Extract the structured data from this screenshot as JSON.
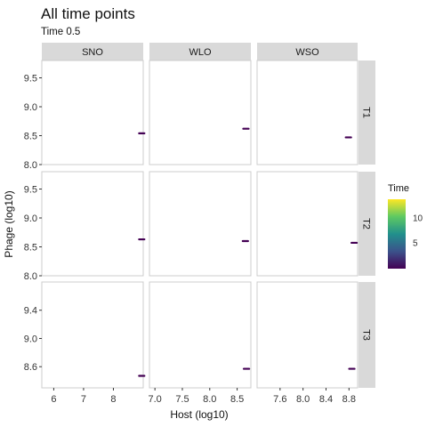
{
  "header": {
    "title": "All time points",
    "subtitle": "Time 0.5"
  },
  "legend": {
    "title": "Time",
    "labels": [
      "10",
      "5"
    ],
    "range": [
      0,
      14
    ]
  },
  "chart_data": {
    "type": "scatter",
    "title": "All time points",
    "subtitle": "Time 0.5",
    "xlabel": "Host (log10)",
    "ylabel": "Phage (log10)",
    "facet_cols": [
      "SNO",
      "WLO",
      "WSO"
    ],
    "facet_rows": [
      "T1",
      "T2",
      "T3"
    ],
    "x_axes": [
      {
        "xlim": [
          5.6,
          9.0
        ],
        "ticks": [
          6,
          7,
          8
        ],
        "tick_labels": [
          "6",
          "7",
          "8"
        ]
      },
      {
        "xlim": [
          6.9,
          8.75
        ],
        "ticks": [
          7.0,
          7.5,
          8.0,
          8.5
        ],
        "tick_labels": [
          "7.0",
          "7.5",
          "8.0",
          "8.5"
        ]
      },
      {
        "xlim": [
          7.2,
          8.95
        ],
        "ticks": [
          7.6,
          8.0,
          8.4,
          8.8
        ],
        "tick_labels": [
          "7.6",
          "8.0",
          "8.4",
          "8.8"
        ]
      }
    ],
    "y_axes": [
      {
        "ylim": [
          8.0,
          9.8
        ],
        "ticks": [
          8.0,
          8.5,
          9.0,
          9.5
        ],
        "tick_labels": [
          "8.0",
          "8.5",
          "9.0",
          "9.5"
        ]
      },
      {
        "ylim": [
          8.0,
          9.8
        ],
        "ticks": [
          8.0,
          8.5,
          9.0,
          9.5
        ],
        "tick_labels": [
          "8.0",
          "8.5",
          "9.0",
          "9.5"
        ]
      },
      {
        "ylim": [
          8.3,
          9.8
        ],
        "ticks": [
          8.6,
          9.0,
          9.4
        ],
        "tick_labels": [
          "8.6",
          "9.0",
          "9.4"
        ]
      }
    ],
    "points": [
      {
        "col": 0,
        "row": 0,
        "x": 8.95,
        "y": 8.54,
        "time": 0.5
      },
      {
        "col": 1,
        "row": 0,
        "x": 8.66,
        "y": 8.62,
        "time": 0.5
      },
      {
        "col": 2,
        "row": 0,
        "x": 8.79,
        "y": 8.47,
        "time": 0.5
      },
      {
        "col": 0,
        "row": 1,
        "x": 8.95,
        "y": 8.63,
        "time": 0.5
      },
      {
        "col": 1,
        "row": 1,
        "x": 8.65,
        "y": 8.6,
        "time": 0.5
      },
      {
        "col": 2,
        "row": 1,
        "x": 8.89,
        "y": 8.57,
        "time": 0.5
      },
      {
        "col": 0,
        "row": 2,
        "x": 8.95,
        "y": 8.47,
        "time": 0.5
      },
      {
        "col": 1,
        "row": 2,
        "x": 8.67,
        "y": 8.57,
        "time": 0.5
      },
      {
        "col": 2,
        "row": 2,
        "x": 8.85,
        "y": 8.57,
        "time": 0.5
      }
    ],
    "grid": false,
    "legend_position": "right"
  }
}
